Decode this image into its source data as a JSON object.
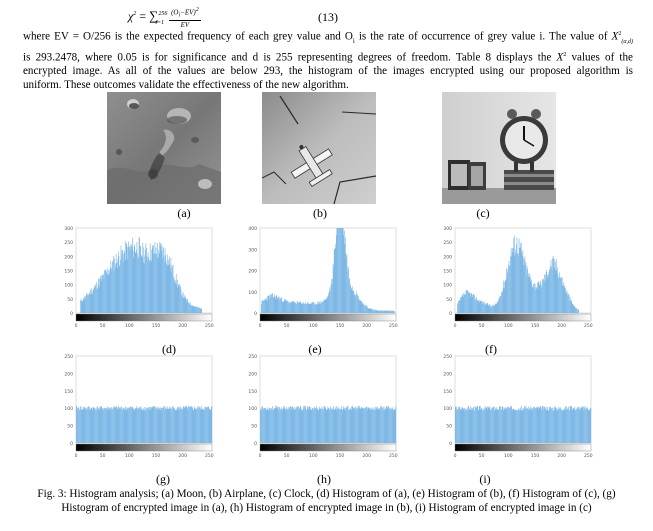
{
  "equation": {
    "lhs": "χ",
    "exp": "2",
    "eq": "=",
    "sum_symbol": "∑",
    "sum_upper": "256",
    "sum_lower": "i=1",
    "frac_num": "(O",
    "frac_num_sub": "i",
    "frac_num_rest": "−EV)",
    "frac_num_exp": "2",
    "frac_den": "EV",
    "number": "(13)"
  },
  "paragraph": {
    "lines": [
      "where EV = O/256 is the expected frequency of each grey value and O",
      " is the rate of occurrence of grey value i. The value of ",
      "is 293.2478, where 0.05 is for significance and d is 255 representing degrees of freedom. Table 8 displays the ",
      " values of the",
      "encrypted image. As all of the values are below 293, the histogram of the images encrypted using our proposed algorithm is",
      "uniform. These outcomes validate the effectiveness of the new algorithm."
    ],
    "sub_i": "i",
    "chi_symbol": "X",
    "chi_exp": "2",
    "chi_sub": "(α,d)",
    "chi_tail": ""
  },
  "panels": {
    "a": "(a)",
    "b": "(b)",
    "c": "(c)",
    "d": "(d)",
    "e": "(e)",
    "f": "(f)",
    "g": "(g)",
    "h": "(h)",
    "i": "(i)"
  },
  "histogram_axes": {
    "row1_y_ticks": [
      "300",
      "250",
      "200",
      "150",
      "100",
      "50",
      "0"
    ],
    "row2_y_ticks": [
      "250",
      "200",
      "150",
      "100",
      "50",
      "0"
    ],
    "x_ticks": [
      "0",
      "50",
      "100",
      "150",
      "200",
      "250"
    ]
  },
  "colors": {
    "bar": "#7fb9e6",
    "bar_dark": "#4d9bd8"
  },
  "figure_caption": {
    "line1": "Fig. 3: Histogram analysis; (a) Moon, (b) Airplane, (c) Clock, (d) Histogram of (a), (e) Histogram of (b), (f) Histogram of (c), (g)",
    "line2": "Histogram of encrypted image in (a), (h) Histogram of encrypted image in (b), (i) Histogram of encrypted image in (c)"
  },
  "chart_data": [
    {
      "type": "bar",
      "name": "Histogram of Moon (d)",
      "ylim": [
        0,
        300
      ],
      "shape": "moon"
    },
    {
      "type": "bar",
      "name": "Histogram of Airplane (e)",
      "ylim": [
        0,
        400
      ],
      "shape": "airplane"
    },
    {
      "type": "bar",
      "name": "Histogram of Clock (f)",
      "ylim": [
        0,
        300
      ],
      "shape": "clock"
    },
    {
      "type": "bar",
      "name": "Histogram of encrypted Moon (g)",
      "ylim": [
        0,
        250
      ],
      "shape": "uniform"
    },
    {
      "type": "bar",
      "name": "Histogram of encrypted Airplane (h)",
      "ylim": [
        0,
        250
      ],
      "shape": "uniform"
    },
    {
      "type": "bar",
      "name": "Histogram of encrypted Clock (i)",
      "ylim": [
        0,
        250
      ],
      "shape": "uniform"
    }
  ]
}
